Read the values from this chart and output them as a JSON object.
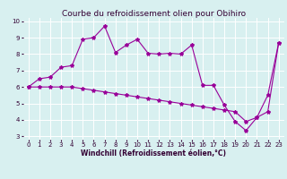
{
  "title": "Courbe du refroidissement olien pour Obihiro",
  "xlabel": "Windchill (Refroidissement éolien,°C)",
  "xlim": [
    -0.5,
    23.5
  ],
  "ylim": [
    2.8,
    10.2
  ],
  "yticks": [
    3,
    4,
    5,
    6,
    7,
    8,
    9,
    10
  ],
  "xticks": [
    0,
    1,
    2,
    3,
    4,
    5,
    6,
    7,
    8,
    9,
    10,
    11,
    12,
    13,
    14,
    15,
    16,
    17,
    18,
    19,
    20,
    21,
    22,
    23
  ],
  "line1_x": [
    0,
    1,
    2,
    3,
    4,
    5,
    6,
    7,
    8,
    9,
    10,
    11,
    12,
    13,
    14,
    15,
    16,
    17,
    18,
    19,
    20,
    21,
    22,
    23
  ],
  "line1_y": [
    6.0,
    6.5,
    6.6,
    7.2,
    7.3,
    8.9,
    9.0,
    9.7,
    8.1,
    8.55,
    8.9,
    8.05,
    8.0,
    8.05,
    8.0,
    8.55,
    6.1,
    6.1,
    4.9,
    3.9,
    3.35,
    4.15,
    5.5,
    8.7
  ],
  "line2_x": [
    0,
    1,
    2,
    3,
    4,
    5,
    6,
    7,
    8,
    9,
    10,
    11,
    12,
    13,
    14,
    15,
    16,
    17,
    18,
    19,
    20,
    21,
    22,
    23
  ],
  "line2_y": [
    6.0,
    6.0,
    6.0,
    6.0,
    6.0,
    5.9,
    5.8,
    5.7,
    5.6,
    5.5,
    5.4,
    5.3,
    5.2,
    5.1,
    5.0,
    4.9,
    4.8,
    4.7,
    4.6,
    4.5,
    3.9,
    4.15,
    4.5,
    8.7
  ],
  "color": "#990099",
  "bg_color": "#d8f0f0",
  "grid_color": "#ffffff",
  "title_fontsize": 6.5,
  "label_fontsize": 5.5,
  "tick_fontsize": 5,
  "marker": "*",
  "markersize": 3,
  "linewidth": 0.8
}
